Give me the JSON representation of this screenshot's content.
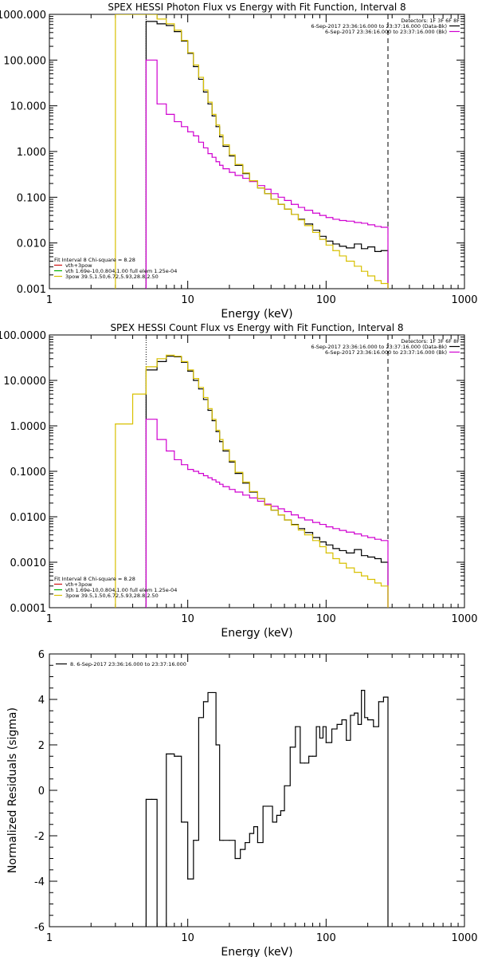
{
  "chart_data": [
    {
      "type": "line",
      "title": "SPEX HESSI Photon Flux vs Energy with Fit Function, Interval 8",
      "xlabel": "Energy (keV)",
      "ylabel": "",
      "xscale": "log",
      "yscale": "log",
      "xlim": [
        1,
        1000
      ],
      "ylim": [
        0.001,
        1000
      ],
      "x_ticks": [
        "1",
        "10",
        "100",
        "1000"
      ],
      "y_ticks": [
        "1000.000",
        "100.000",
        "10.000",
        "1.000",
        "0.100",
        "0.010",
        "0.001"
      ],
      "vlines": [
        {
          "x": 5,
          "style": "dotted"
        },
        {
          "x": 280,
          "style": "dashed"
        }
      ],
      "legend_top": {
        "title": "Detectors: 1F 3F 6F 8F",
        "entries": [
          {
            "label": "6-Sep-2017 23:36:16.000 to 23:37:16.000 (Data-Bk)",
            "color": "#000000"
          },
          {
            "label": "6-Sep-2017 23:36:16.000 to 23:37:16.000 (Bk)",
            "color": "#d000d0"
          }
        ]
      },
      "legend_bottom": {
        "title": "Fit Interval 8   Chi-square = 8.28",
        "entries": [
          {
            "label": "vth+3pow",
            "color": "#d01010"
          },
          {
            "label": "vth 1.69e-10,0.804,1.00  full elem 1.25e-04",
            "color": "#00b000"
          },
          {
            "label": "3pow 39.5,1.50,6.72,5.93,28.8,2.50",
            "color": "#d8c000"
          }
        ]
      },
      "series": [
        {
          "name": "6-Sep-2017 23:36:16.000 to 23:37:16.000 (Data-Bk)",
          "color": "#000000",
          "x": [
            5,
            6,
            7,
            8,
            9,
            10,
            11,
            12,
            13,
            14,
            15,
            16,
            17,
            18,
            20,
            22,
            25,
            28,
            32,
            36,
            40,
            45,
            50,
            56,
            63,
            70,
            80,
            90,
            100,
            112,
            125,
            140,
            160,
            180,
            200,
            225,
            250,
            280
          ],
          "y": [
            700,
            620,
            570,
            420,
            260,
            140,
            72,
            38,
            20,
            11,
            6,
            3.5,
            2.1,
            1.3,
            0.8,
            0.5,
            0.33,
            0.23,
            0.16,
            0.12,
            0.09,
            0.07,
            0.055,
            0.042,
            0.033,
            0.026,
            0.019,
            0.014,
            0.011,
            0.0095,
            0.0085,
            0.0078,
            0.0095,
            0.0075,
            0.0082,
            0.0065,
            0.0068,
            0.0068
          ]
        },
        {
          "name": "6-Sep-2017 23:36:16.000 to 23:37:16.000 (Bk)",
          "color": "#d000d0",
          "x": [
            5,
            6,
            7,
            8,
            9,
            10,
            11,
            12,
            13,
            14,
            15,
            16,
            17,
            18,
            20,
            22,
            25,
            28,
            32,
            36,
            40,
            45,
            50,
            56,
            63,
            70,
            80,
            90,
            100,
            112,
            125,
            140,
            160,
            180,
            200,
            225,
            250,
            280
          ],
          "y": [
            100,
            11,
            6.5,
            4.5,
            3.5,
            2.7,
            2.2,
            1.6,
            1.2,
            0.9,
            0.75,
            0.6,
            0.5,
            0.42,
            0.35,
            0.3,
            0.26,
            0.22,
            0.18,
            0.15,
            0.12,
            0.1,
            0.085,
            0.07,
            0.06,
            0.052,
            0.045,
            0.04,
            0.036,
            0.033,
            0.031,
            0.03,
            0.028,
            0.027,
            0.025,
            0.023,
            0.022,
            0.02
          ]
        },
        {
          "name": "3pow 39.5,1.50,6.72,5.93,28.8,2.50",
          "color": "#d8c000",
          "x": [
            3,
            5,
            6,
            7,
            8,
            9,
            10,
            11,
            12,
            13,
            14,
            15,
            16,
            17,
            18,
            20,
            22,
            25,
            28,
            32,
            36,
            40,
            45,
            50,
            56,
            63,
            70,
            80,
            90,
            100,
            112,
            125,
            140,
            160,
            180,
            200,
            225,
            250,
            280
          ],
          "y": [
            1000,
            1000,
            790,
            620,
            450,
            270,
            145,
            78,
            42,
            22,
            12,
            6.5,
            3.8,
            2.3,
            1.4,
            0.85,
            0.52,
            0.34,
            0.23,
            0.16,
            0.12,
            0.09,
            0.07,
            0.055,
            0.042,
            0.032,
            0.024,
            0.017,
            0.012,
            0.009,
            0.0068,
            0.0052,
            0.004,
            0.0031,
            0.0024,
            0.0019,
            0.0015,
            0.0013,
            0.0011
          ]
        }
      ]
    },
    {
      "type": "line",
      "title": "SPEX HESSI Count Flux vs Energy with Fit Function, Interval 8",
      "xlabel": "Energy (keV)",
      "ylabel": "",
      "xscale": "log",
      "yscale": "log",
      "xlim": [
        1,
        1000
      ],
      "ylim": [
        0.0001,
        100
      ],
      "x_ticks": [
        "1",
        "10",
        "100",
        "1000"
      ],
      "y_ticks": [
        "100.0000",
        "10.0000",
        "1.0000",
        "0.1000",
        "0.0100",
        "0.0010",
        "0.0001"
      ],
      "vlines": [
        {
          "x": 5,
          "style": "dotted"
        },
        {
          "x": 280,
          "style": "dashed"
        }
      ],
      "legend_top": {
        "title": "Detectors: 1F 3F 6F 8F",
        "entries": [
          {
            "label": "6-Sep-2017 23:36:16.000 to 23:37:16.000 (Data-Bk)",
            "color": "#000000"
          },
          {
            "label": "6-Sep-2017 23:36:16.000 to 23:37:16.000 (Bk)",
            "color": "#d000d0"
          }
        ]
      },
      "legend_bottom": {
        "title": "Fit Interval 8   Chi-square = 8.28",
        "entries": [
          {
            "label": "vth+3pow",
            "color": "#d01010"
          },
          {
            "label": "vth 1.69e-10,0.804,1.00  full elem 1.25e-04",
            "color": "#00b000"
          },
          {
            "label": "3pow 39.5,1.50,6.72,5.93,28.8,2.50",
            "color": "#d8c000"
          }
        ]
      },
      "series": [
        {
          "name": "6-Sep-2017 23:36:16.000 to 23:37:16.000 (Data-Bk)",
          "color": "#000000",
          "x": [
            5,
            6,
            7,
            8,
            9,
            10,
            11,
            12,
            13,
            14,
            15,
            16,
            17,
            18,
            20,
            22,
            25,
            28,
            32,
            36,
            40,
            45,
            50,
            56,
            63,
            70,
            80,
            90,
            100,
            112,
            125,
            140,
            160,
            180,
            200,
            225,
            250,
            280
          ],
          "y": [
            17,
            26,
            34,
            33,
            25,
            16,
            10,
            6.5,
            3.8,
            2.2,
            1.3,
            0.75,
            0.45,
            0.28,
            0.16,
            0.09,
            0.055,
            0.035,
            0.025,
            0.018,
            0.014,
            0.011,
            0.0085,
            0.0068,
            0.0055,
            0.0045,
            0.0035,
            0.0028,
            0.0024,
            0.002,
            0.0018,
            0.0016,
            0.0019,
            0.0014,
            0.0013,
            0.0012,
            0.001,
            0.001
          ]
        },
        {
          "name": "6-Sep-2017 23:36:16.000 to 23:37:16.000 (Bk)",
          "color": "#d000d0",
          "x": [
            5,
            6,
            7,
            8,
            9,
            10,
            11,
            12,
            13,
            14,
            15,
            16,
            17,
            18,
            20,
            22,
            25,
            28,
            32,
            36,
            40,
            45,
            50,
            56,
            63,
            70,
            80,
            90,
            100,
            112,
            125,
            140,
            160,
            180,
            200,
            225,
            250,
            280
          ],
          "y": [
            1.4,
            0.5,
            0.28,
            0.18,
            0.14,
            0.11,
            0.1,
            0.09,
            0.08,
            0.072,
            0.065,
            0.058,
            0.052,
            0.046,
            0.04,
            0.035,
            0.03,
            0.026,
            0.022,
            0.019,
            0.017,
            0.015,
            0.013,
            0.011,
            0.0095,
            0.0085,
            0.0075,
            0.0068,
            0.006,
            0.0055,
            0.005,
            0.0046,
            0.0042,
            0.0038,
            0.0035,
            0.0032,
            0.003,
            0.0028
          ]
        },
        {
          "name": "3pow 39.5,1.50,6.72,5.93,28.8,2.50",
          "color": "#d8c000",
          "x": [
            3,
            4,
            5,
            6,
            7,
            8,
            9,
            10,
            11,
            12,
            13,
            14,
            15,
            16,
            17,
            18,
            20,
            22,
            25,
            28,
            32,
            36,
            40,
            45,
            50,
            56,
            63,
            70,
            80,
            90,
            100,
            112,
            125,
            140,
            160,
            180,
            200,
            225,
            250,
            280
          ],
          "y": [
            1.1,
            5,
            20,
            30,
            36,
            34,
            26,
            17,
            11,
            7,
            4.2,
            2.4,
            1.4,
            0.8,
            0.5,
            0.3,
            0.17,
            0.095,
            0.058,
            0.036,
            0.025,
            0.018,
            0.014,
            0.011,
            0.0085,
            0.0066,
            0.0051,
            0.004,
            0.003,
            0.0022,
            0.0016,
            0.0012,
            0.00095,
            0.00075,
            0.0006,
            0.0005,
            0.00042,
            0.00035,
            0.0003,
            0.00025
          ]
        }
      ]
    },
    {
      "type": "line",
      "title": "",
      "xlabel": "Energy (keV)",
      "ylabel": "Normalized Residuals (sigma)",
      "xscale": "log",
      "yscale": "linear",
      "xlim": [
        1,
        1000
      ],
      "ylim": [
        -6,
        6
      ],
      "x_ticks": [
        "1",
        "10",
        "100",
        "1000"
      ],
      "y_ticks": [
        "6",
        "4",
        "2",
        "0",
        "-2",
        "-4",
        "-6"
      ],
      "legend": {
        "label": "8.  6-Sep-2017 23:36:16.000 to 23:37:16.000",
        "color": "#000000"
      },
      "series": [
        {
          "name": "8.  6-Sep-2017 23:36:16.000 to 23:37:16.000",
          "color": "#000000",
          "x": [
            5,
            5.5,
            6,
            6.5,
            7,
            7.5,
            8,
            8.5,
            9,
            9.5,
            10,
            10.5,
            11,
            11.5,
            12,
            12.5,
            13,
            13.5,
            14,
            15,
            16,
            17,
            18,
            20,
            22,
            24,
            26,
            28,
            30,
            32,
            35,
            38,
            41,
            44,
            47,
            50,
            55,
            60,
            65,
            70,
            75,
            80,
            85,
            90,
            95,
            100,
            110,
            120,
            130,
            140,
            150,
            160,
            170,
            180,
            190,
            200,
            220,
            240,
            260,
            280
          ],
          "y": [
            -0.4,
            -0.4,
            -6.2,
            -6.2,
            1.6,
            1.6,
            1.5,
            1.5,
            -1.4,
            -1.4,
            -3.9,
            -3.9,
            -2.2,
            -2.2,
            3.2,
            3.2,
            3.9,
            3.9,
            4.3,
            4.3,
            2.0,
            -2.2,
            -2.2,
            -2.2,
            -3.0,
            -2.6,
            -2.3,
            -1.9,
            -1.6,
            -2.3,
            -0.7,
            -0.7,
            -1.4,
            -1.1,
            -0.9,
            0.2,
            1.9,
            2.8,
            1.2,
            1.2,
            1.5,
            1.5,
            2.8,
            2.3,
            2.8,
            2.1,
            2.7,
            2.9,
            3.1,
            2.2,
            3.3,
            3.4,
            2.9,
            4.4,
            3.2,
            3.1,
            2.8,
            3.9,
            4.1,
            4.1
          ]
        }
      ]
    }
  ]
}
